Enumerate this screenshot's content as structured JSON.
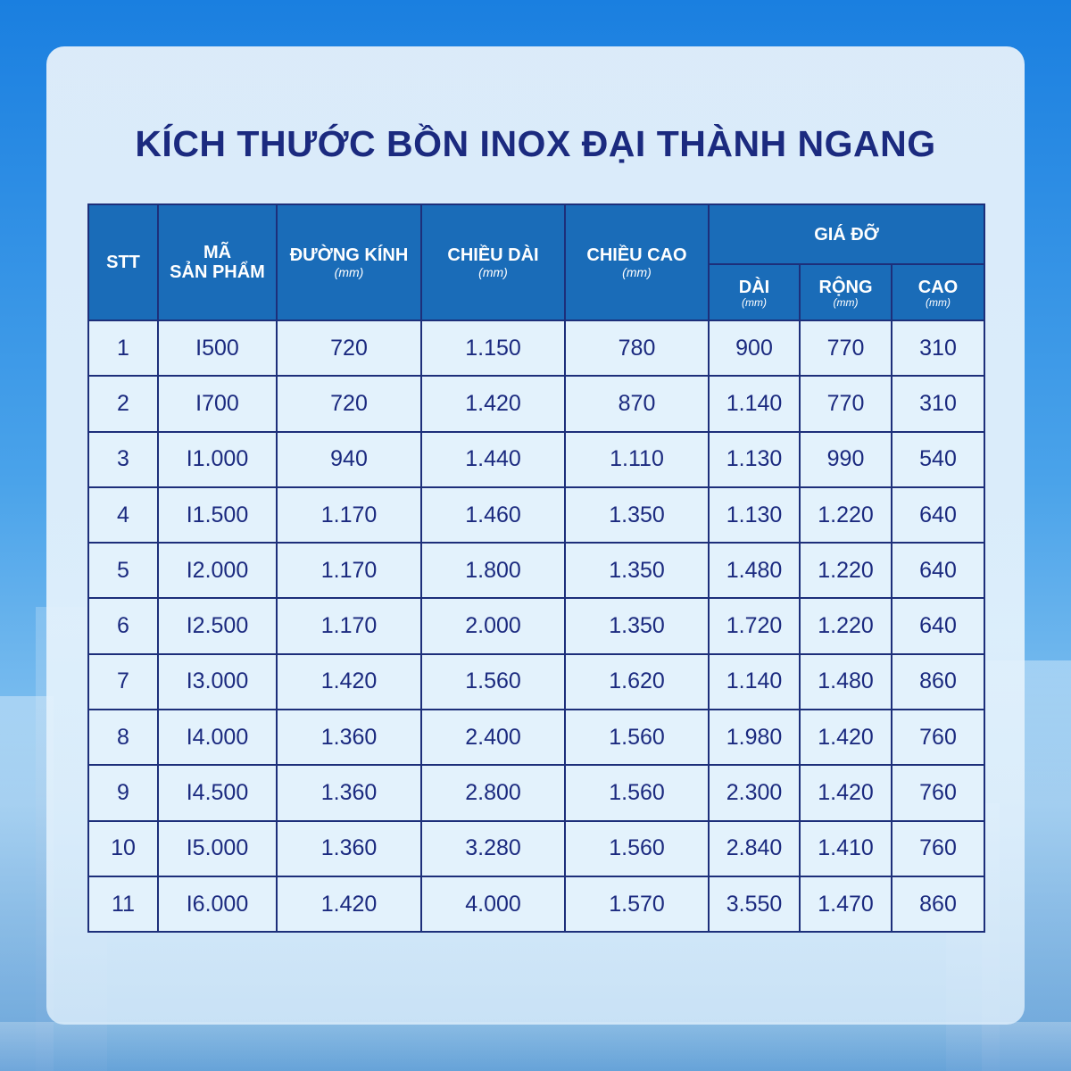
{
  "title": "KÍCH THƯỚC BỒN INOX ĐẠI THÀNH NGANG",
  "table": {
    "headers": {
      "stt": "STT",
      "ma_line1": "MÃ",
      "ma_line2": "SẢN PHẨM",
      "duong_kinh": "ĐƯỜNG KÍNH",
      "chieu_dai": "CHIỀU DÀI",
      "chieu_cao": "CHIỀU CAO",
      "gia_do": "GIÁ ĐỠ",
      "dai": "DÀI",
      "rong": "RỘNG",
      "cao": "CAO",
      "unit": "(mm)"
    },
    "rows": [
      [
        "1",
        "I500",
        "720",
        "1.150",
        "780",
        "900",
        "770",
        "310"
      ],
      [
        "2",
        "I700",
        "720",
        "1.420",
        "870",
        "1.140",
        "770",
        "310"
      ],
      [
        "3",
        "I1.000",
        "940",
        "1.440",
        "1.110",
        "1.130",
        "990",
        "540"
      ],
      [
        "4",
        "I1.500",
        "1.170",
        "1.460",
        "1.350",
        "1.130",
        "1.220",
        "640"
      ],
      [
        "5",
        "I2.000",
        "1.170",
        "1.800",
        "1.350",
        "1.480",
        "1.220",
        "640"
      ],
      [
        "6",
        "I2.500",
        "1.170",
        "2.000",
        "1.350",
        "1.720",
        "1.220",
        "640"
      ],
      [
        "7",
        "I3.000",
        "1.420",
        "1.560",
        "1.620",
        "1.140",
        "1.480",
        "860"
      ],
      [
        "8",
        "I4.000",
        "1.360",
        "2.400",
        "1.560",
        "1.980",
        "1.420",
        "760"
      ],
      [
        "9",
        "I4.500",
        "1.360",
        "2.800",
        "1.560",
        "2.300",
        "1.420",
        "760"
      ],
      [
        "10",
        "I5.000",
        "1.360",
        "3.280",
        "1.560",
        "2.840",
        "1.410",
        "760"
      ],
      [
        "11",
        "I6.000",
        "1.420",
        "4.000",
        "1.570",
        "3.550",
        "1.470",
        "860"
      ]
    ]
  }
}
